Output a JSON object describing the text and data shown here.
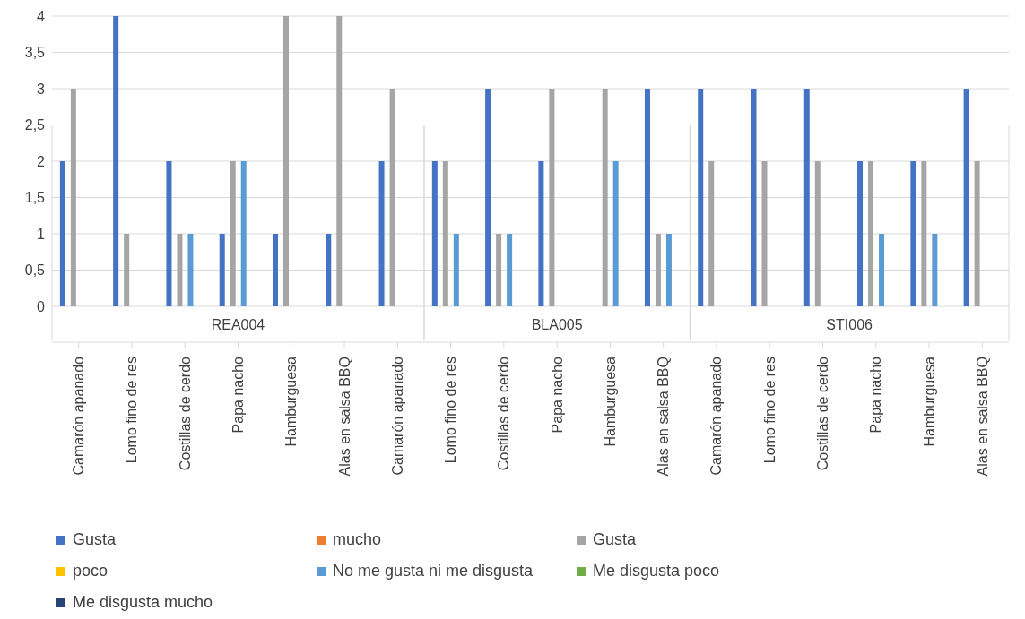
{
  "chart_data": {
    "type": "bar",
    "categories": [
      "Camarón apanado",
      "Lomo fino de res",
      "Costillas de cerdo",
      "Papa nacho",
      "Hamburguesa",
      "Alas en salsa BBQ",
      "Camarón apanado",
      "Lomo fino de res",
      "Costillas de cerdo",
      "Papa nacho",
      "Hamburguesa",
      "Alas en salsa BBQ",
      "Camarón apanado",
      "Lomo fino de res",
      "Costillas de cerdo",
      "Papa nacho",
      "Hamburguesa",
      "Alas en salsa BBQ"
    ],
    "series": [
      {
        "name": "Gusta",
        "color": "#4472c4",
        "values": [
          2,
          4,
          2,
          1,
          1,
          1,
          2,
          2,
          3,
          2,
          0,
          3,
          3,
          3,
          3,
          2,
          2,
          3
        ]
      },
      {
        "name": "mucho",
        "color": "#ed7d31",
        "values": [
          0,
          0,
          0,
          0,
          0,
          0,
          0,
          0,
          0,
          0,
          0,
          0,
          0,
          0,
          0,
          0,
          0,
          0
        ]
      },
      {
        "name": "Gusta",
        "color": "#a5a5a5",
        "values": [
          3,
          1,
          1,
          2,
          4,
          4,
          3,
          2,
          1,
          3,
          3,
          1,
          2,
          2,
          2,
          2,
          2,
          2
        ]
      },
      {
        "name": "poco",
        "color": "#ffc000",
        "values": [
          0,
          0,
          0,
          0,
          0,
          0,
          0,
          0,
          0,
          0,
          0,
          0,
          0,
          0,
          0,
          0,
          0,
          0
        ]
      },
      {
        "name": "No me gusta ni me disgusta",
        "color": "#5b9bd5",
        "values": [
          0,
          0,
          1,
          2,
          0,
          0,
          0,
          1,
          1,
          0,
          2,
          1,
          0,
          0,
          0,
          1,
          1,
          0
        ]
      },
      {
        "name": "Me disgusta poco",
        "color": "#70ad47",
        "values": [
          0,
          0,
          0,
          0,
          0,
          0,
          0,
          0,
          0,
          0,
          0,
          0,
          0,
          0,
          0,
          0,
          0,
          0
        ]
      },
      {
        "name": "Me disgusta mucho",
        "color": "#264478",
        "values": [
          0,
          0,
          0,
          0,
          0,
          0,
          0,
          0,
          0,
          0,
          0,
          0,
          0,
          0,
          0,
          0,
          0,
          0
        ]
      }
    ],
    "annotations": [
      "REA004",
      "BLA005",
      "STI006"
    ],
    "ylim": [
      0,
      4
    ],
    "yticks": [
      0,
      {
        "value": 0.5,
        "label": "0,5"
      },
      1,
      {
        "value": 1.5,
        "label": "1,5"
      },
      2,
      {
        "value": 2.5,
        "label": "2,5"
      },
      3,
      {
        "value": 3.5,
        "label": "3,5"
      },
      4
    ],
    "grid": "y",
    "legend": "bottom"
  }
}
